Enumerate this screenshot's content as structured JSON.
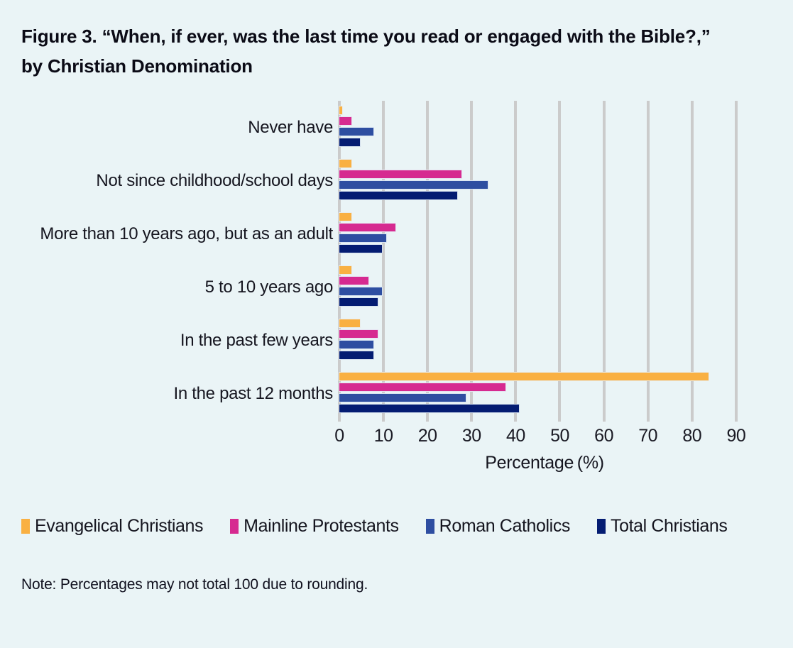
{
  "chart_data": {
    "type": "bar",
    "orientation": "horizontal",
    "title": "Figure 3. “When, if ever, was the last time you read or engaged with the Bible?,” by Christian Denomination",
    "xlabel": "Percentage (%)",
    "xlim": [
      0,
      93.4
    ],
    "x_ticks": [
      0,
      10,
      20,
      30,
      40,
      50,
      60,
      70,
      80,
      90
    ],
    "grid": true,
    "legend_position": "bottom",
    "background_color": "#EAF4F6",
    "gridline_color": "#CBCBCB",
    "categories": [
      "Never have",
      "Not since childhood/school days",
      "More than 10 years ago, but as an adult",
      "5 to 10 years ago",
      "In the past few years",
      "In the past 12 months"
    ],
    "series": [
      {
        "name": "Evangelical Christians",
        "color": "#F9B042",
        "values": [
          1,
          3,
          3,
          3,
          5,
          84
        ]
      },
      {
        "name": "Mainline Protestants",
        "color": "#D62A90",
        "values": [
          3,
          28,
          13,
          7,
          9,
          38
        ]
      },
      {
        "name": "Roman Catholics",
        "color": "#2E4EA1",
        "values": [
          8,
          34,
          11,
          10,
          8,
          29
        ]
      },
      {
        "name": "Total Christians",
        "color": "#041C72",
        "values": [
          5,
          27,
          10,
          9,
          8,
          41
        ]
      }
    ],
    "note": "Note: Percentages may not total 100 due to rounding."
  }
}
